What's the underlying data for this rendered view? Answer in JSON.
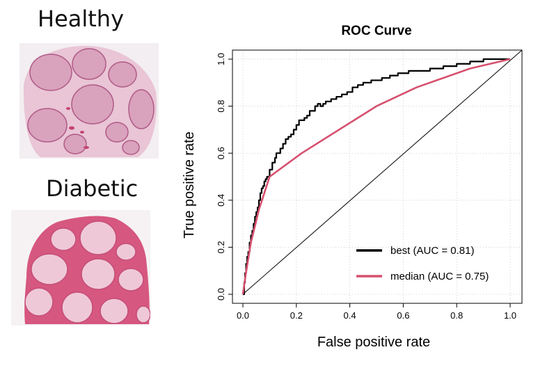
{
  "images": {
    "healthy": {
      "label": "Healthy",
      "palette": {
        "bg": "#f3eef1",
        "stroma": "#e9c5d6",
        "fascicle": "#d9a2bd",
        "edge": "#b05a86",
        "vessel": "#c4426f"
      }
    },
    "diabetic": {
      "label": "Diabetic",
      "palette": {
        "bg": "#f6f2f4",
        "stroma": "#d6577f",
        "fascicle": "#efc8d8",
        "edge": "#c44f78",
        "vessel": "#b8325e"
      }
    }
  },
  "chart_data": {
    "type": "line",
    "title": "ROC Curve",
    "xlabel": "False positive rate",
    "ylabel": "True positive rate",
    "xlim": [
      0,
      1
    ],
    "ylim": [
      0,
      1
    ],
    "xticks": [
      "0.0",
      "0.2",
      "0.4",
      "0.6",
      "0.8",
      "1.0"
    ],
    "yticks": [
      "0.0",
      "0.2",
      "0.4",
      "0.6",
      "0.8",
      "1.0"
    ],
    "grid": true,
    "legend_position": "bottom-right",
    "reference_line": {
      "from": [
        0,
        0
      ],
      "to": [
        1,
        1
      ],
      "color": "#000000"
    },
    "series": [
      {
        "name": "best (AUC = 0.81)",
        "color": "#000000",
        "step": true,
        "x": [
          0.0,
          0.005,
          0.008,
          0.012,
          0.016,
          0.02,
          0.025,
          0.03,
          0.035,
          0.04,
          0.045,
          0.05,
          0.055,
          0.06,
          0.065,
          0.07,
          0.075,
          0.08,
          0.085,
          0.09,
          0.1,
          0.11,
          0.12,
          0.125,
          0.13,
          0.14,
          0.15,
          0.16,
          0.17,
          0.18,
          0.19,
          0.2,
          0.21,
          0.22,
          0.23,
          0.24,
          0.25,
          0.27,
          0.28,
          0.29,
          0.3,
          0.31,
          0.33,
          0.35,
          0.37,
          0.39,
          0.41,
          0.42,
          0.43,
          0.44,
          0.45,
          0.48,
          0.5,
          0.52,
          0.55,
          0.58,
          0.62,
          0.66,
          0.7,
          0.75,
          0.8,
          0.85,
          0.88,
          0.9,
          0.92,
          1.0
        ],
        "y": [
          0.0,
          0.05,
          0.09,
          0.13,
          0.16,
          0.18,
          0.22,
          0.25,
          0.27,
          0.3,
          0.33,
          0.35,
          0.37,
          0.4,
          0.43,
          0.45,
          0.46,
          0.48,
          0.49,
          0.5,
          0.53,
          0.56,
          0.58,
          0.6,
          0.6,
          0.62,
          0.64,
          0.66,
          0.67,
          0.68,
          0.7,
          0.72,
          0.74,
          0.74,
          0.75,
          0.76,
          0.78,
          0.8,
          0.81,
          0.8,
          0.81,
          0.82,
          0.83,
          0.84,
          0.85,
          0.86,
          0.88,
          0.88,
          0.89,
          0.89,
          0.9,
          0.91,
          0.91,
          0.92,
          0.93,
          0.94,
          0.95,
          0.95,
          0.96,
          0.97,
          0.98,
          0.99,
          0.99,
          1.0,
          1.0,
          1.0
        ]
      },
      {
        "name": "median (AUC = 0.75)",
        "color": "#d6506e",
        "step": false,
        "x": [
          0.0,
          0.01,
          0.03,
          0.06,
          0.1,
          0.22,
          0.5,
          0.65,
          0.85,
          1.0
        ],
        "y": [
          0.0,
          0.08,
          0.22,
          0.36,
          0.5,
          0.6,
          0.8,
          0.88,
          0.96,
          1.0
        ]
      }
    ]
  }
}
